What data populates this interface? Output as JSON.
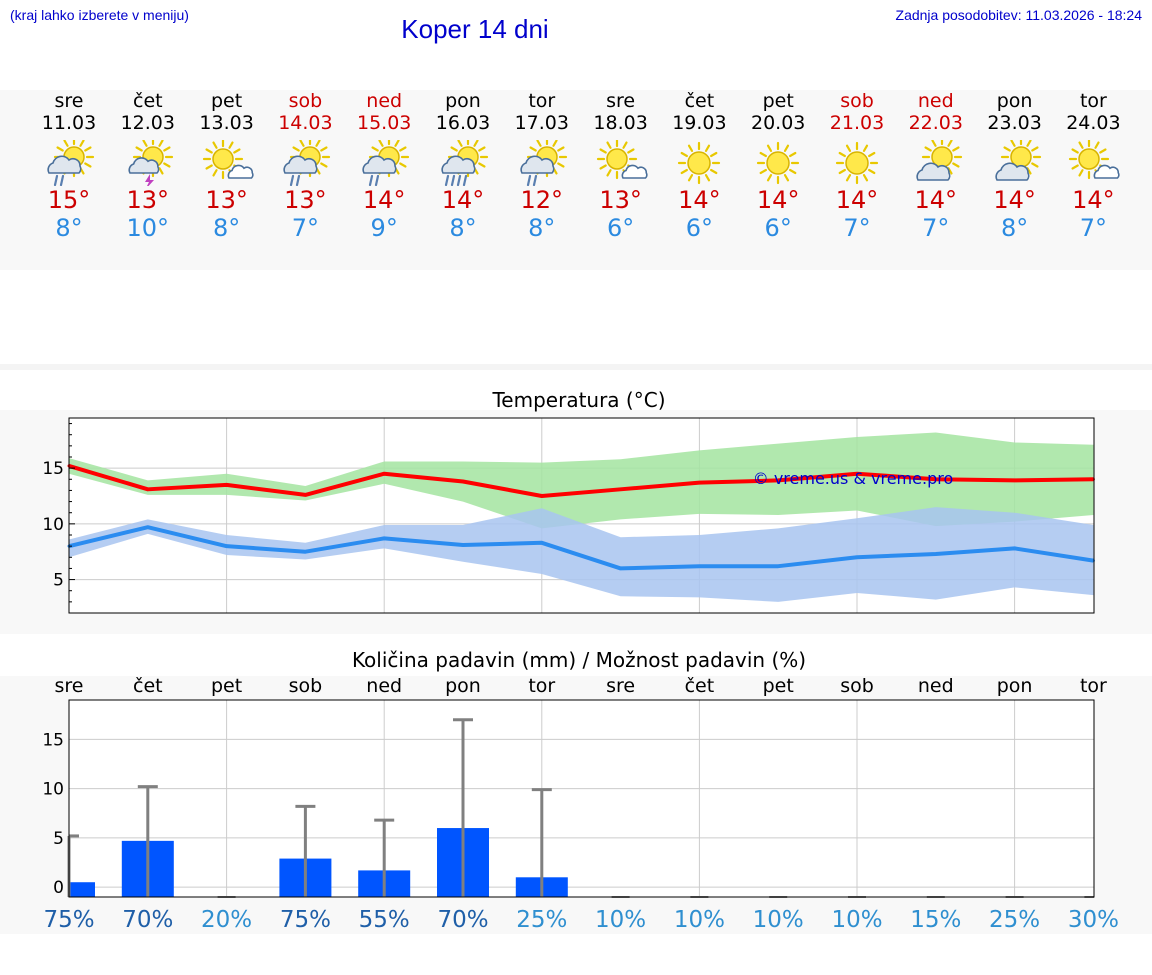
{
  "header": {
    "hint": "(kraj lahko izberete v meniju)",
    "title": "Koper 14 dni",
    "updated": "Zadnja posodobitev: 11.03.2026 - 18:24"
  },
  "colors": {
    "link_blue": "#0000cc",
    "max_temp": "#cc0000",
    "min_temp": "#2b8ae0",
    "weekend": "#cc0000",
    "max_line": "#ff0000",
    "max_band": "#a3e4a0",
    "min_line": "#2b8cf0",
    "min_band": "#a8c4f0",
    "precip_bar": "#0055ff",
    "whisker": "#808080"
  },
  "days": [
    {
      "name": "sre",
      "date": "11.03",
      "weekend": false,
      "icon": "sun-cloud-rain-icon",
      "max": "15°",
      "min": "8°"
    },
    {
      "name": "čet",
      "date": "12.03",
      "weekend": false,
      "icon": "sun-cloud-thunder-icon",
      "max": "13°",
      "min": "10°"
    },
    {
      "name": "pet",
      "date": "13.03",
      "weekend": false,
      "icon": "sun-cloud-icon",
      "max": "13°",
      "min": "8°"
    },
    {
      "name": "sob",
      "date": "14.03",
      "weekend": true,
      "icon": "sun-cloud-rain-icon",
      "max": "13°",
      "min": "7°"
    },
    {
      "name": "ned",
      "date": "15.03",
      "weekend": true,
      "icon": "sun-cloud-rain-icon",
      "max": "14°",
      "min": "9°"
    },
    {
      "name": "pon",
      "date": "16.03",
      "weekend": false,
      "icon": "sun-cloud-heavy-rain-icon",
      "max": "14°",
      "min": "8°"
    },
    {
      "name": "tor",
      "date": "17.03",
      "weekend": false,
      "icon": "sun-cloud-rain-icon",
      "max": "12°",
      "min": "8°"
    },
    {
      "name": "sre",
      "date": "18.03",
      "weekend": false,
      "icon": "sun-cloud-icon",
      "max": "13°",
      "min": "6°"
    },
    {
      "name": "čet",
      "date": "19.03",
      "weekend": false,
      "icon": "sun-icon",
      "max": "14°",
      "min": "6°"
    },
    {
      "name": "pet",
      "date": "20.03",
      "weekend": false,
      "icon": "sun-icon",
      "max": "14°",
      "min": "6°"
    },
    {
      "name": "sob",
      "date": "21.03",
      "weekend": true,
      "icon": "sun-icon",
      "max": "14°",
      "min": "7°"
    },
    {
      "name": "ned",
      "date": "22.03",
      "weekend": true,
      "icon": "sun-behind-cloud-icon",
      "max": "14°",
      "min": "7°"
    },
    {
      "name": "pon",
      "date": "23.03",
      "weekend": false,
      "icon": "sun-behind-cloud-icon",
      "max": "14°",
      "min": "8°"
    },
    {
      "name": "tor",
      "date": "24.03",
      "weekend": false,
      "icon": "sun-cloud-icon",
      "max": "14°",
      "min": "7°"
    }
  ],
  "chart_data": [
    {
      "type": "line",
      "title": "Temperatura (°C)",
      "watermark": "© vreme.us & vreme.pro",
      "x": [
        0,
        1,
        2,
        3,
        4,
        5,
        6,
        7,
        8,
        9,
        10,
        11,
        12,
        13
      ],
      "ylim": [
        2,
        19.5
      ],
      "yticks": [
        5,
        10,
        15
      ],
      "grid": true,
      "series": [
        {
          "name": "max",
          "values": [
            15.2,
            13.1,
            13.5,
            12.6,
            14.5,
            13.8,
            12.5,
            13.1,
            13.7,
            13.9,
            14.5,
            14.0,
            13.9,
            14.0
          ],
          "low": [
            14.5,
            12.6,
            12.6,
            12.1,
            13.6,
            12.0,
            9.6,
            10.4,
            10.9,
            10.8,
            11.2,
            9.8,
            10.2,
            10.8
          ],
          "high": [
            15.9,
            13.9,
            14.5,
            13.4,
            15.6,
            15.6,
            15.5,
            15.8,
            16.6,
            17.2,
            17.8,
            18.2,
            17.3,
            17.1
          ]
        },
        {
          "name": "min",
          "values": [
            8.0,
            9.7,
            8.0,
            7.5,
            8.7,
            8.1,
            8.3,
            6.0,
            6.2,
            6.2,
            7.0,
            7.3,
            7.8,
            6.7
          ],
          "low": [
            7.0,
            9.1,
            7.2,
            6.8,
            7.8,
            6.6,
            5.5,
            3.5,
            3.4,
            3.0,
            3.8,
            3.2,
            4.3,
            3.6
          ],
          "high": [
            8.6,
            10.4,
            9.0,
            8.3,
            9.9,
            9.9,
            11.4,
            8.8,
            9.0,
            9.6,
            10.5,
            11.5,
            11.0,
            9.9
          ]
        }
      ]
    },
    {
      "type": "bar",
      "title": "Količina padavin (mm) / Možnost padavin (%)",
      "categories": [
        "sre",
        "čet",
        "pet",
        "sob",
        "ned",
        "pon",
        "tor",
        "sre",
        "čet",
        "pet",
        "sob",
        "ned",
        "pon",
        "tor"
      ],
      "values": [
        0.5,
        4.7,
        0,
        2.9,
        1.7,
        6.0,
        1.0,
        0,
        0,
        0,
        0,
        0,
        0,
        0
      ],
      "max_values": [
        5.2,
        10.2,
        0,
        8.2,
        6.8,
        17.0,
        9.9,
        0,
        0,
        0,
        0,
        0,
        0,
        0
      ],
      "chance": [
        "75%",
        "70%",
        "20%",
        "75%",
        "55%",
        "70%",
        "25%",
        "10%",
        "10%",
        "10%",
        "10%",
        "15%",
        "25%",
        "30%"
      ],
      "ylim": [
        -1,
        19
      ],
      "yticks": [
        0,
        5,
        10,
        15
      ],
      "grid": true
    }
  ]
}
